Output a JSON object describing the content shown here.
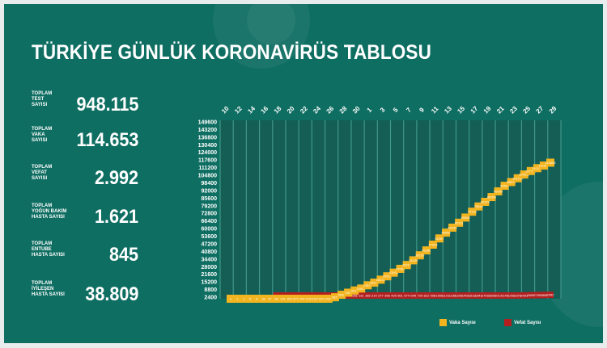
{
  "title": "TÜRKİYE GÜNLÜK KORONAVİRÜS TABLOSU",
  "stats": [
    {
      "label": "TOPLAM\nTEST\nSAYISI",
      "value": "948.115"
    },
    {
      "label": "TOPLAM\nVAKA\nSAYISI",
      "value": "114.653"
    },
    {
      "label": "TOPLAM\nVEFAT\nSAYISI",
      "value": "2.992"
    },
    {
      "label": "TOPLAM\nYOĞUN BAKIM\nHASTA SAYISI",
      "value": "1.621"
    },
    {
      "label": "TOPLAM\nENTUBE\nHASTA SAYISI",
      "value": "845"
    },
    {
      "label": "TOPLAM\nİYİLEŞEN\nHASTA SAYISI",
      "value": "38.809"
    }
  ],
  "colors": {
    "background": "#0f6e62",
    "vaka": "#f2b41f",
    "vefat": "#b41e1e",
    "grid": "#3f978a"
  },
  "chart_data": {
    "type": "line",
    "x_tick_labels": [
      "10",
      "12",
      "14",
      "16",
      "18",
      "20",
      "22",
      "24",
      "26",
      "28",
      "30",
      "1",
      "3",
      "5",
      "7",
      "9",
      "11",
      "13",
      "15",
      "17",
      "19",
      "21",
      "23",
      "25",
      "27",
      "29"
    ],
    "y_tick_labels": [
      "149600",
      "143200",
      "136800",
      "130400",
      "124000",
      "117600",
      "111200",
      "104800",
      "98400",
      "92000",
      "85600",
      "79200",
      "72800",
      "66400",
      "60000",
      "53600",
      "47200",
      "40800",
      "34400",
      "28000",
      "21600",
      "15200",
      "8800",
      "2400"
    ],
    "ylim": [
      2400,
      149600
    ],
    "legend": [
      "Vaka Sayısı",
      "Vefat Sayısı"
    ],
    "legend_position": "bottom-right",
    "series": [
      {
        "name": "Vaka Sayısı",
        "values": [
          1,
          1,
          1,
          5,
          6,
          18,
          47,
          98,
          191,
          359,
          670,
          947,
          1236,
          1529,
          1872,
          2433,
          3629,
          5698,
          7402,
          9217,
          10827,
          13531,
          15679,
          18135,
          20921,
          23934,
          27069,
          30217,
          34109,
          38226,
          42282,
          47029,
          52167,
          56956,
          61049,
          65111,
          69392,
          74193,
          78546,
          82329,
          86306,
          90980,
          95591,
          98674,
          101790,
          104912,
          107773,
          110130,
          112261,
          114653
        ]
      },
      {
        "name": "Vefat Sayısı",
        "values": [
          0,
          0,
          0,
          0,
          0,
          0,
          0,
          1,
          2,
          3,
          4,
          9,
          21,
          30,
          37,
          44,
          59,
          75,
          92,
          108,
          131,
          168,
          214,
          277,
          356,
          425,
          501,
          574,
          649,
          725,
          812,
          908,
          1006,
          1101,
          1198,
          1296,
          1403,
          1518,
          1643,
          1769,
          1890,
          2017,
          2140,
          2259,
          2376,
          2491,
          2600,
          2706,
          2805,
          2992
        ]
      }
    ],
    "point_labels": {
      "vaka": [
        "1",
        "1",
        "1",
        "5",
        "6",
        "18",
        "47",
        "98",
        "191",
        "359",
        "670",
        "947",
        "1236",
        "1529",
        "1872",
        "2433",
        "3629",
        "5698",
        "7402",
        "9217",
        "10827",
        "13531",
        "15679",
        "18135",
        "20921",
        "23934",
        "27069",
        "30217",
        "34109",
        "38226",
        "42282",
        "47029",
        "52167",
        "56956",
        "61049",
        "65111",
        "69392",
        "74193",
        "78546",
        "82329",
        "86306",
        "90980",
        "95591",
        "98674",
        "101790",
        "104912",
        "107773",
        "110130",
        "112261",
        "114653"
      ],
      "vefat": [
        "",
        "",
        "",
        "",
        "",
        "",
        "",
        "1",
        "2",
        "3",
        "4",
        "9",
        "21",
        "30",
        "37",
        "44",
        "59",
        "75",
        "92",
        "108",
        "131",
        "168",
        "214",
        "277",
        "356",
        "425",
        "501",
        "574",
        "649",
        "725",
        "812",
        "908",
        "1006",
        "1101",
        "1198",
        "1296",
        "1403",
        "1518",
        "1643",
        "1769",
        "1890",
        "2017",
        "2140",
        "2259",
        "2376",
        "2491",
        "2600",
        "2706",
        "2805",
        "2992"
      ]
    }
  }
}
